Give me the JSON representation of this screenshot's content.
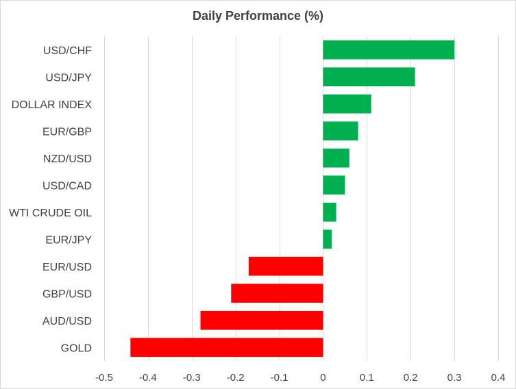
{
  "chart_data": {
    "type": "bar",
    "orientation": "horizontal",
    "title": "Daily Performance  (%)",
    "xlabel": "",
    "ylabel": "",
    "categories": [
      "USD/CHF",
      "USD/JPY",
      "DOLLAR INDEX",
      "EUR/GBP",
      "NZD/USD",
      "USD/CAD",
      "WTI CRUDE OIL",
      "EUR/JPY",
      "EUR/USD",
      "GBP/USD",
      "AUD/USD",
      "GOLD"
    ],
    "values": [
      0.3,
      0.21,
      0.11,
      0.08,
      0.06,
      0.05,
      0.03,
      0.02,
      -0.17,
      -0.21,
      -0.28,
      -0.44
    ],
    "xlim": [
      -0.5,
      0.4
    ],
    "xticks": [
      -0.5,
      -0.4,
      -0.3,
      -0.2,
      -0.1,
      0,
      0.1,
      0.2,
      0.3,
      0.4
    ],
    "xtick_labels": [
      "-0.5",
      "-0.4",
      "-0.3",
      "-0.2",
      "-0.1",
      "0",
      "0.1",
      "0.2",
      "0.3",
      "0.4"
    ],
    "grid": "vertical",
    "legend": "none",
    "colors": {
      "positive": "#00b050",
      "negative": "#ff0000",
      "grid": "#d9d9d9",
      "text": "#404040"
    }
  }
}
